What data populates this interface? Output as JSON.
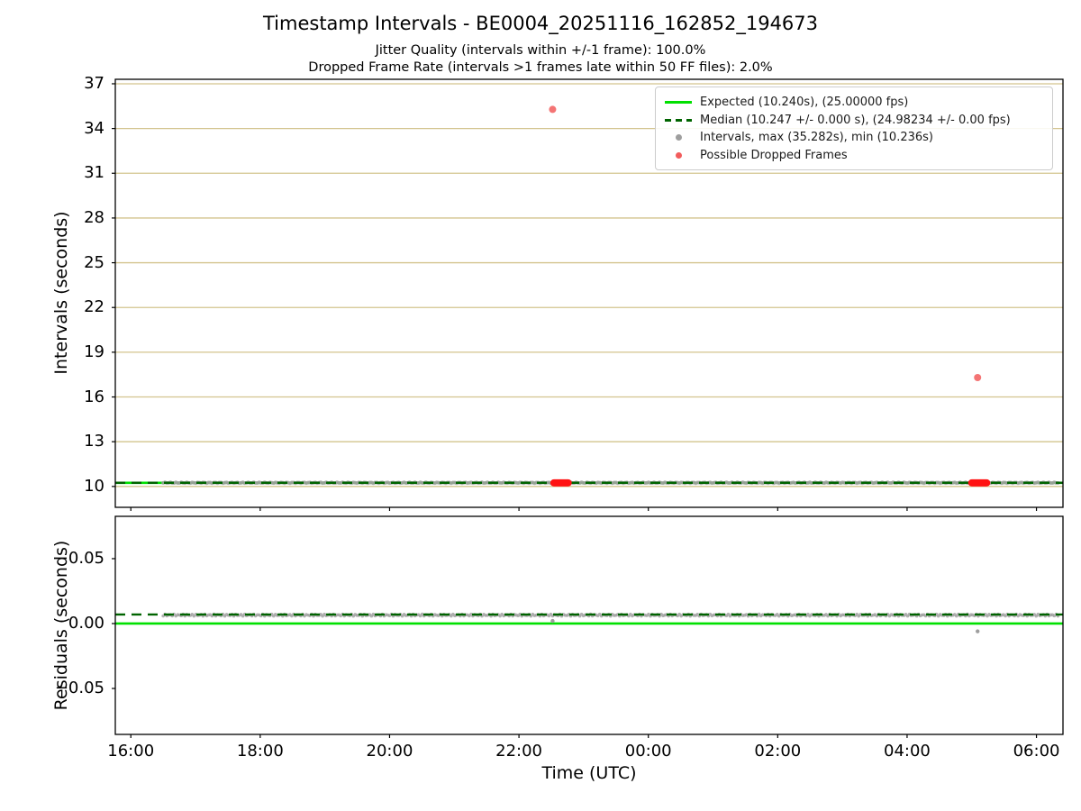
{
  "chart_data": {
    "type": "scatter",
    "title": "Timestamp Intervals - BE0004_20251116_162852_194673",
    "subtitles": [
      "Jitter Quality (intervals within +/-1 frame): 100.0%",
      "Dropped Frame Rate (intervals >1 frames late within 50 FF files): 2.0%"
    ],
    "jitter_quality_pct": 100.0,
    "dropped_frame_rate_pct": 2.0,
    "ff_file_window": 50,
    "xlabel": "Time (UTC)",
    "x_tick_labels": [
      "16:00",
      "18:00",
      "20:00",
      "22:00",
      "00:00",
      "02:00",
      "04:00",
      "06:00"
    ],
    "x_tick_hours": [
      16,
      18,
      20,
      22,
      24,
      26,
      28,
      30
    ],
    "xlim_hours": [
      15.76,
      30.41
    ],
    "top_panel": {
      "ylabel": "Intervals (seconds)",
      "yticks": [
        10,
        13,
        16,
        19,
        22,
        25,
        28,
        31,
        34,
        37
      ],
      "ylim": [
        8.6,
        37.3
      ],
      "grid": true,
      "expected_interval_s": 10.24,
      "expected_fps": "25.00000",
      "median_interval_s": 10.247,
      "median_jitter_s": "0.000",
      "median_fps": "24.98234",
      "max_interval_s": 35.282,
      "min_interval_s": 10.236,
      "data_start_hour": 16.5,
      "data_end_hour": 30.35,
      "main_band_value": 10.247,
      "red_outliers": [
        {
          "hour": 22.52,
          "value": 35.282
        },
        {
          "hour": 29.09,
          "value": 17.3
        }
      ],
      "red_clusters": [
        {
          "start": 22.54,
          "end": 22.76,
          "value": 10.24
        },
        {
          "start": 29.0,
          "end": 29.23,
          "value": 10.24
        }
      ],
      "legend": [
        {
          "label": "Expected (10.240s), (25.00000 fps)",
          "marker": "line",
          "color": "#00e000"
        },
        {
          "label": "Median (10.247 +/- 0.000 s), (24.98234 +/- 0.00 fps)",
          "marker": "dashed",
          "color": "#006400"
        },
        {
          "label": "Intervals, max (35.282s), min (10.236s)",
          "marker": "dot",
          "color": "#9e9e9e"
        },
        {
          "label": "Possible Dropped Frames",
          "marker": "dot",
          "color": "#f25c5c"
        }
      ]
    },
    "bottom_panel": {
      "ylabel": "Residuals (seconds)",
      "yticks": [
        0.05,
        0.0,
        -0.05
      ],
      "ytick_labels": [
        "0.05",
        "0.00",
        "−0.05"
      ],
      "ylim": [
        -0.0854,
        0.0826
      ],
      "expected_value": 0.0,
      "median_value": 0.007,
      "band_value": 0.0065,
      "outliers": [
        {
          "hour": 22.52,
          "value": 0.002
        },
        {
          "hour": 29.09,
          "value": -0.006
        }
      ]
    },
    "colors": {
      "expected": "#00e000",
      "median": "#006400",
      "intervals": "#9e9e9e",
      "dropped": "#f25c5c",
      "dropped_cluster": "#ff1212",
      "grid": "#d3c48e"
    }
  }
}
